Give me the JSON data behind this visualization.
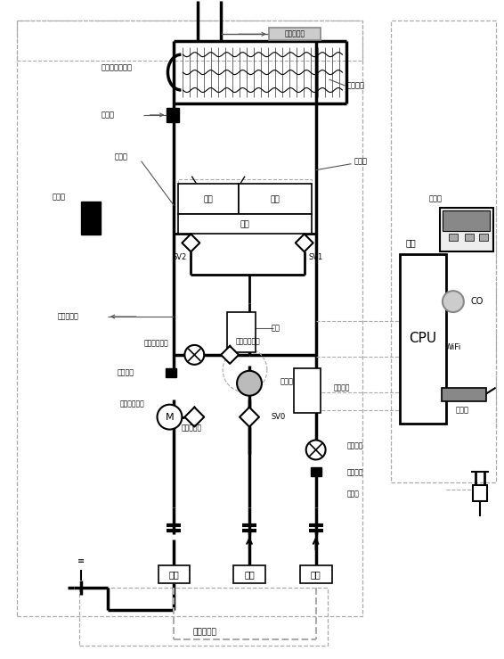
{
  "bg_color": "#ffffff",
  "fig_width": 5.66,
  "fig_height": 7.39,
  "labels": {
    "fang_gan_zao": "防干烧安全装置",
    "re_jiao_gan": "热交感",
    "dian_huo_zhen": "点火针",
    "dian_huo_qi": "点火器",
    "fen_duan_dian_ci_fa": "分段电磁阀",
    "chu_shui_wen_du": "出水温度",
    "shui_liang_si_fu": "水量伺服电机",
    "wen_du_xian_duan_qi": "温度熔断器",
    "re_jiao_huan_qi": "热交换器",
    "ran_shao_qi": "燃烧器",
    "cpu": "CPU",
    "zhu_ban": "主板",
    "xian_shi_ban": "显示板",
    "feng_ji": "风机",
    "pu_tong_guan_shui_liu_liang": "普通管水流量",
    "pu_tong_bu_jin_dian_ji": "普通步进电机",
    "bi_li_fa": "比例阀",
    "dian_ci_fa_zhu_fa": "电磁阀主阀",
    "xun_huan_shui_beng": "循环水泵",
    "jin_shui_liu_liang": "进水流量",
    "jin_shui_wen_du": "进水温度",
    "jin_shui_wang": "进水网",
    "chu_shui": "出水",
    "jin_qi": "进气",
    "jin_shui_label": "进水",
    "wai_xun_huan_shui_lu": "外循环水路",
    "co": "CO",
    "wifi": "WiFi",
    "yao_kong_qi": "遥控器",
    "sv0": "SV0",
    "sv1": "SV1",
    "sv2": "SV2",
    "er_duan": "二段",
    "yi_duan": "一段",
    "san_duan": "三段"
  }
}
